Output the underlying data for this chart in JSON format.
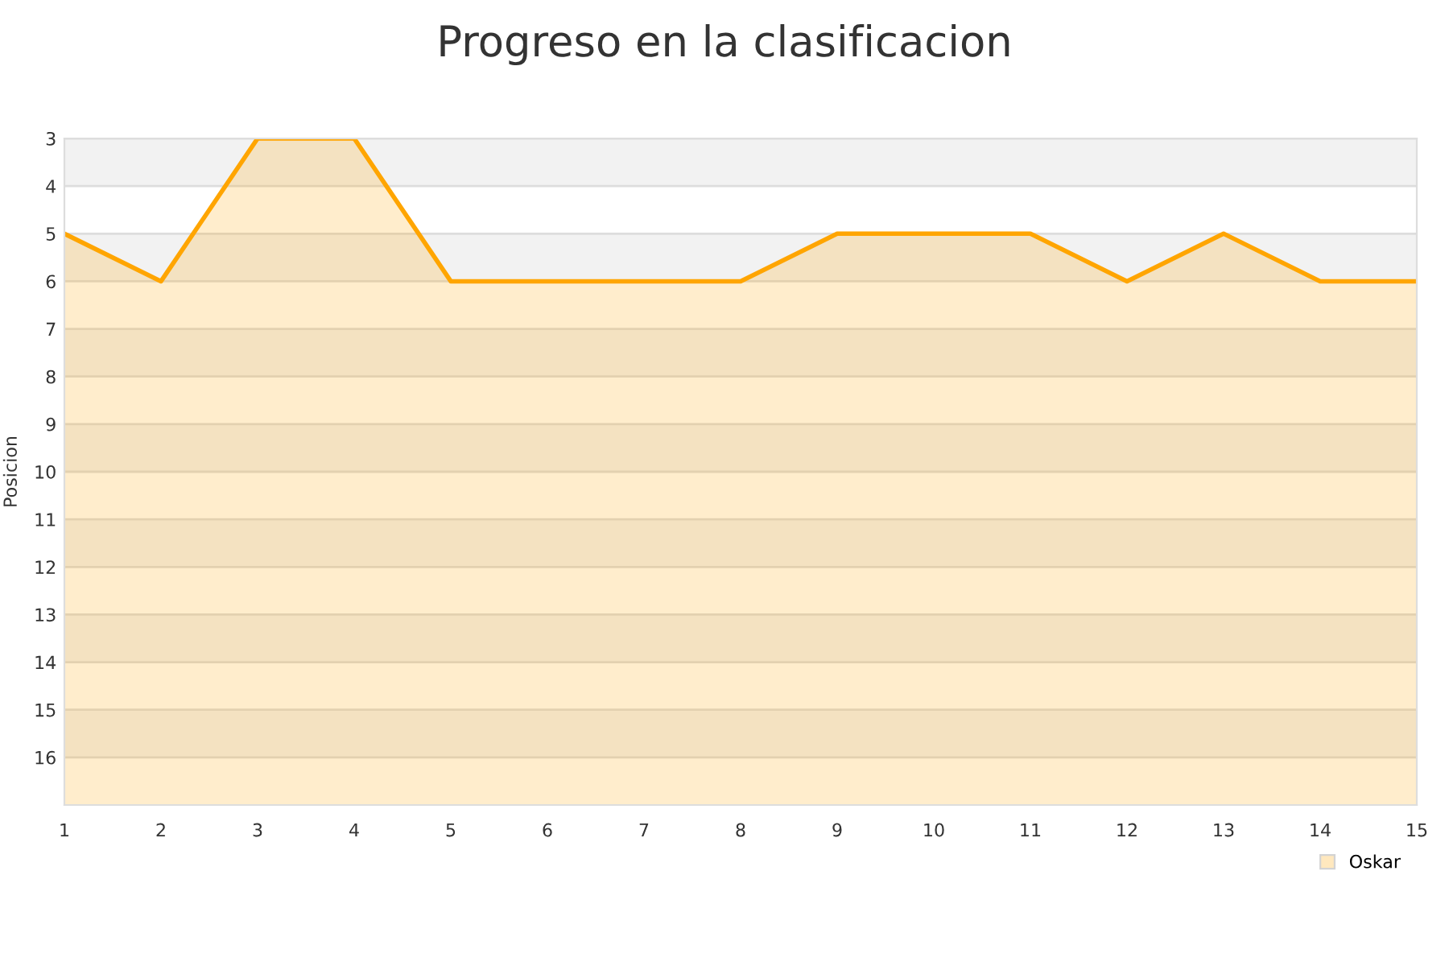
{
  "chart_data": {
    "type": "area",
    "title": "Progreso en la clasificacion",
    "ylabel": "Posicion",
    "x": [
      1,
      2,
      3,
      4,
      5,
      6,
      7,
      8,
      9,
      10,
      11,
      12,
      13,
      14,
      15
    ],
    "series": [
      {
        "name": "Oskar",
        "color": "#ffa500",
        "values": [
          5,
          6,
          3,
          3,
          6,
          6,
          6,
          6,
          5,
          5,
          5,
          6,
          5,
          6,
          6
        ]
      }
    ],
    "xlim": [
      1,
      15
    ],
    "xticks": [
      1,
      2,
      3,
      4,
      5,
      6,
      7,
      8,
      9,
      10,
      11,
      12,
      13,
      14,
      15
    ],
    "ylim": [
      17,
      3
    ],
    "yticks": [
      3,
      4,
      5,
      6,
      7,
      8,
      9,
      10,
      11,
      12,
      13,
      14,
      15,
      16
    ],
    "grid": "y",
    "legend": "bottom right"
  }
}
